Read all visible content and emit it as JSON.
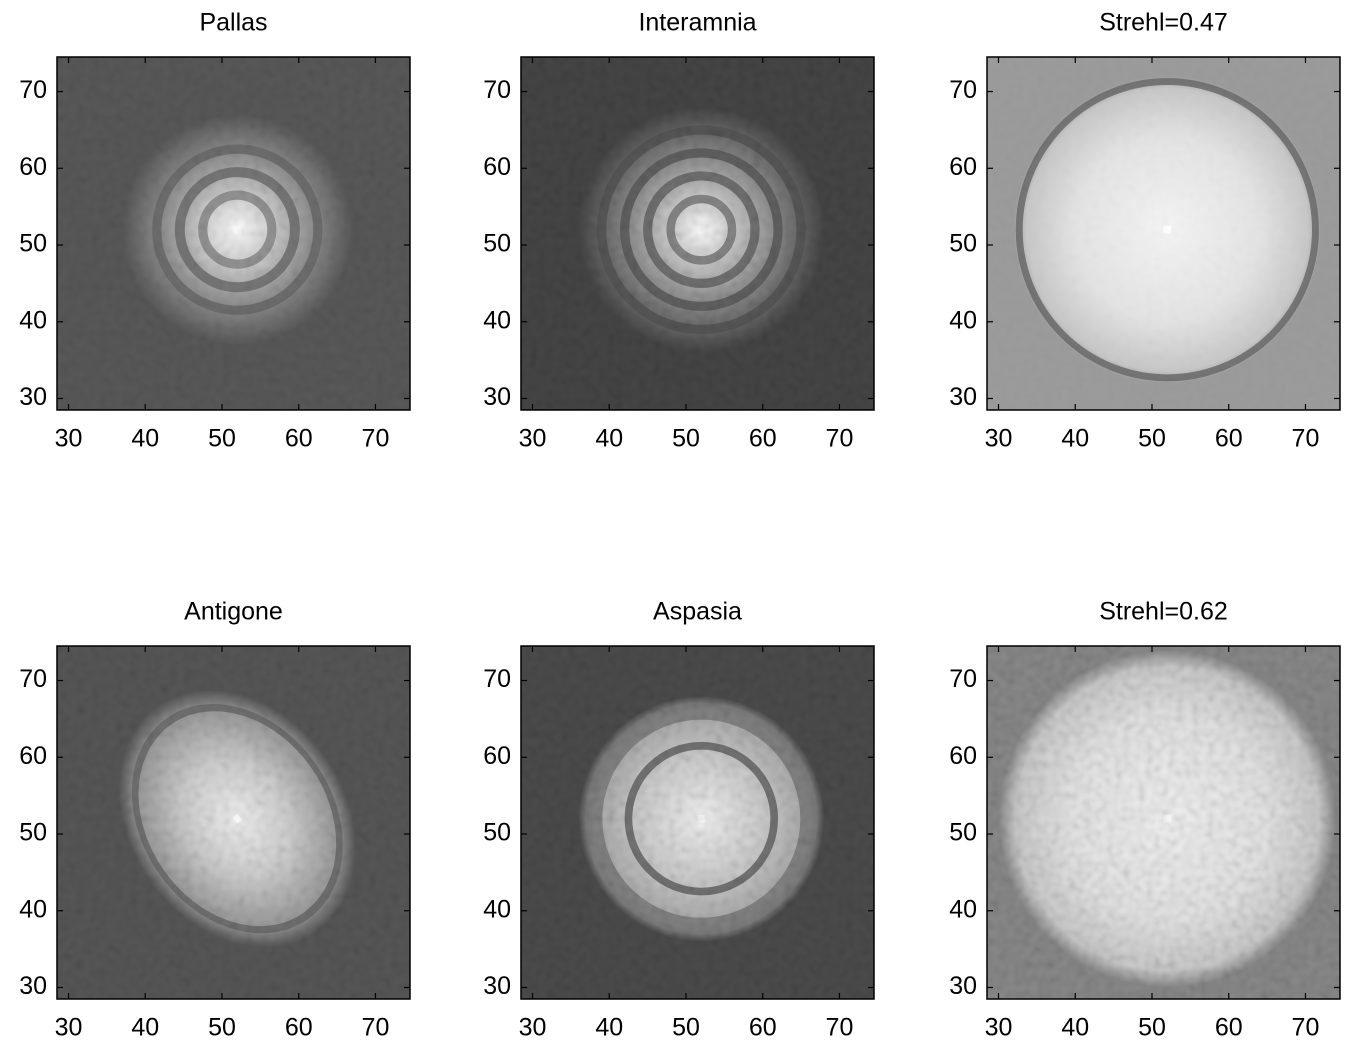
{
  "chart_data": [
    {
      "type": "image",
      "title": "Pallas",
      "colormap": "gray",
      "xlim": [
        28.5,
        74.5
      ],
      "ylim": [
        28.5,
        74.5
      ],
      "xticks": [
        30,
        40,
        50,
        60,
        70
      ],
      "yticks": [
        30,
        40,
        50,
        60,
        70
      ]
    },
    {
      "type": "image",
      "title": "Interamnia",
      "colormap": "gray",
      "xlim": [
        28.5,
        74.5
      ],
      "ylim": [
        28.5,
        74.5
      ],
      "xticks": [
        30,
        40,
        50,
        60,
        70
      ],
      "yticks": [
        30,
        40,
        50,
        60,
        70
      ]
    },
    {
      "type": "image",
      "title": "Strehl=0.47",
      "colormap": "gray",
      "xlim": [
        28.5,
        74.5
      ],
      "ylim": [
        28.5,
        74.5
      ],
      "xticks": [
        30,
        40,
        50,
        60,
        70
      ],
      "yticks": [
        30,
        40,
        50,
        60,
        70
      ]
    },
    {
      "type": "image",
      "title": "Antigone",
      "colormap": "gray",
      "xlim": [
        28.5,
        74.5
      ],
      "ylim": [
        28.5,
        74.5
      ],
      "xticks": [
        30,
        40,
        50,
        60,
        70
      ],
      "yticks": [
        30,
        40,
        50,
        60,
        70
      ]
    },
    {
      "type": "image",
      "title": "Aspasia",
      "colormap": "gray",
      "xlim": [
        28.5,
        74.5
      ],
      "ylim": [
        28.5,
        74.5
      ],
      "xticks": [
        30,
        40,
        50,
        60,
        70
      ],
      "yticks": [
        30,
        40,
        50,
        60,
        70
      ]
    },
    {
      "type": "image",
      "title": "Strehl=0.62",
      "colormap": "gray",
      "xlim": [
        28.5,
        74.5
      ],
      "ylim": [
        28.5,
        74.5
      ],
      "xticks": [
        30,
        40,
        50,
        60,
        70
      ],
      "yticks": [
        30,
        40,
        50,
        60,
        70
      ]
    }
  ]
}
